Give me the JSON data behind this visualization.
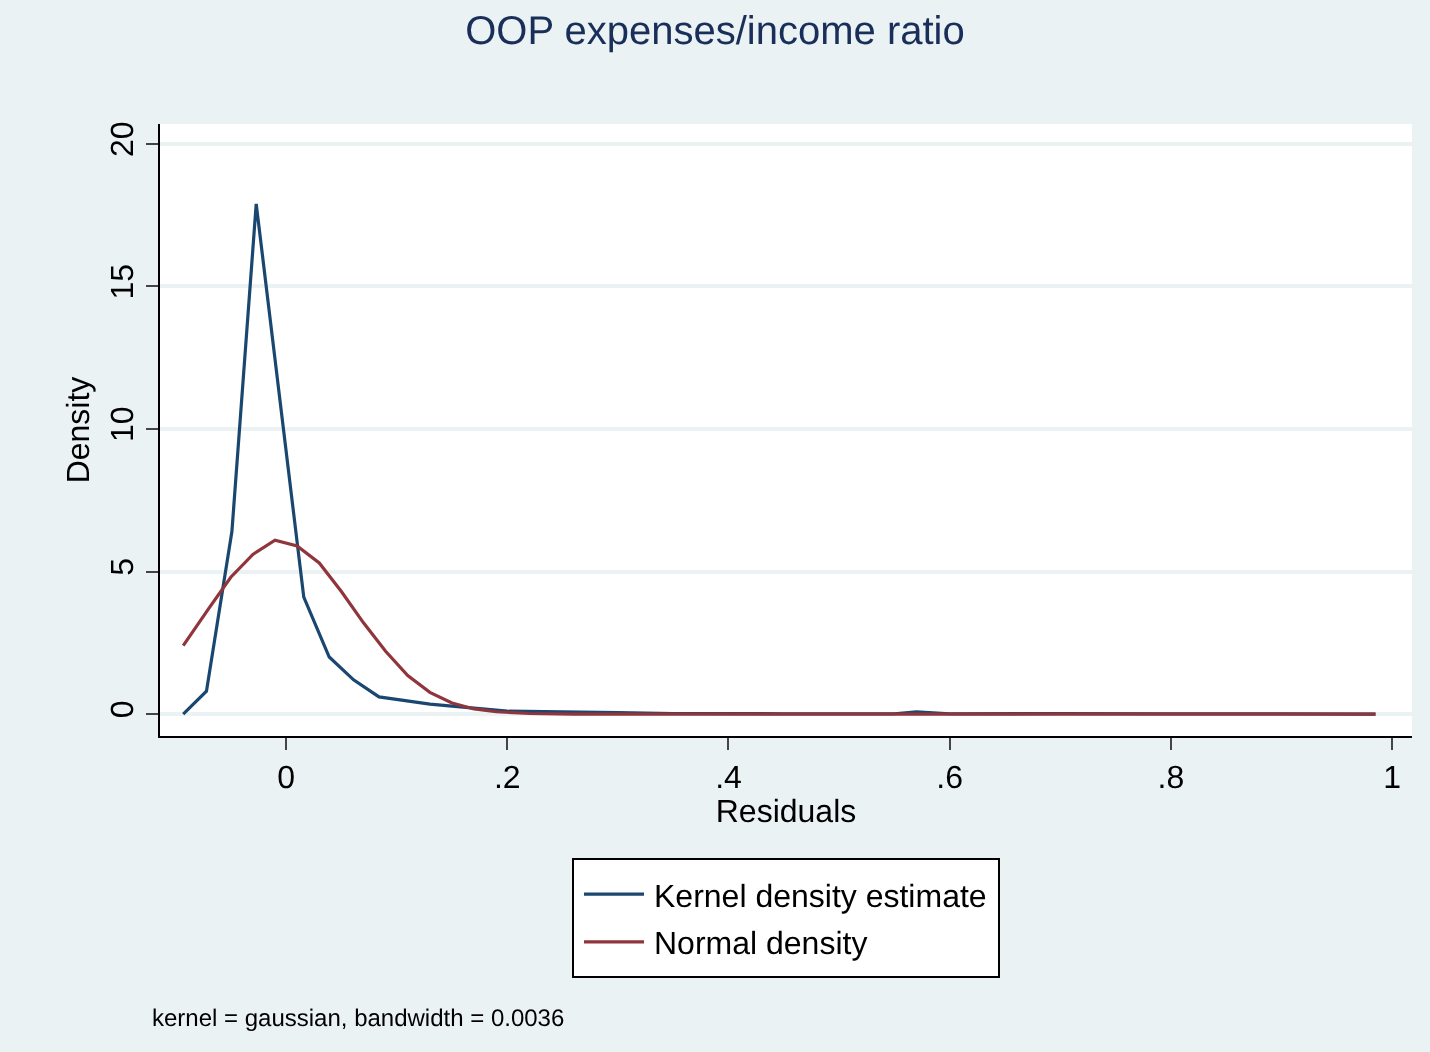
{
  "chart_data": {
    "type": "line",
    "title": "OOP expenses/income ratio",
    "xlabel": "Residuals",
    "ylabel": "Density",
    "xlim": [
      -0.114,
      1.018
    ],
    "ylim": [
      -0.77,
      20.7
    ],
    "xticks": [
      0,
      {
        "value": 0.2,
        "label": ".2"
      },
      {
        "value": 0.4,
        "label": ".4"
      },
      {
        "value": 0.6,
        "label": ".6"
      },
      {
        "value": 0.8,
        "label": ".8"
      },
      1
    ],
    "yticks": [
      0,
      5,
      10,
      15,
      20
    ],
    "grid": "y",
    "legend": "bottom",
    "marker": "none",
    "line_style": "solid",
    "series": [
      {
        "name": "Kernel density estimate",
        "color": "#1a476f",
        "x": [
          -0.093,
          -0.072,
          -0.049,
          -0.027,
          0.016,
          0.039,
          0.061,
          0.084,
          0.13,
          0.2,
          0.25,
          0.3,
          0.35,
          0.45,
          0.55,
          0.57,
          0.6,
          0.7,
          0.8,
          0.9,
          0.985
        ],
        "values": [
          0,
          0.8,
          6.4,
          17.9,
          4.1,
          2.0,
          1.2,
          0.6,
          0.35,
          0.1,
          0.08,
          0.05,
          0.02,
          0.01,
          0.01,
          0.08,
          0.01,
          0.02,
          0.01,
          0.01,
          0
        ]
      },
      {
        "name": "Normal density",
        "color": "#90353b",
        "x": [
          -0.093,
          -0.07,
          -0.05,
          -0.03,
          -0.01,
          0.01,
          0.03,
          0.05,
          0.07,
          0.09,
          0.11,
          0.13,
          0.15,
          0.17,
          0.19,
          0.22,
          0.26,
          0.985
        ],
        "values": [
          2.4,
          3.7,
          4.8,
          5.6,
          6.1,
          5.9,
          5.3,
          4.3,
          3.2,
          2.2,
          1.35,
          0.76,
          0.39,
          0.18,
          0.08,
          0.02,
          0,
          0
        ]
      }
    ],
    "annotations": [
      "kernel = gaussian, bandwidth = 0.0036"
    ]
  }
}
